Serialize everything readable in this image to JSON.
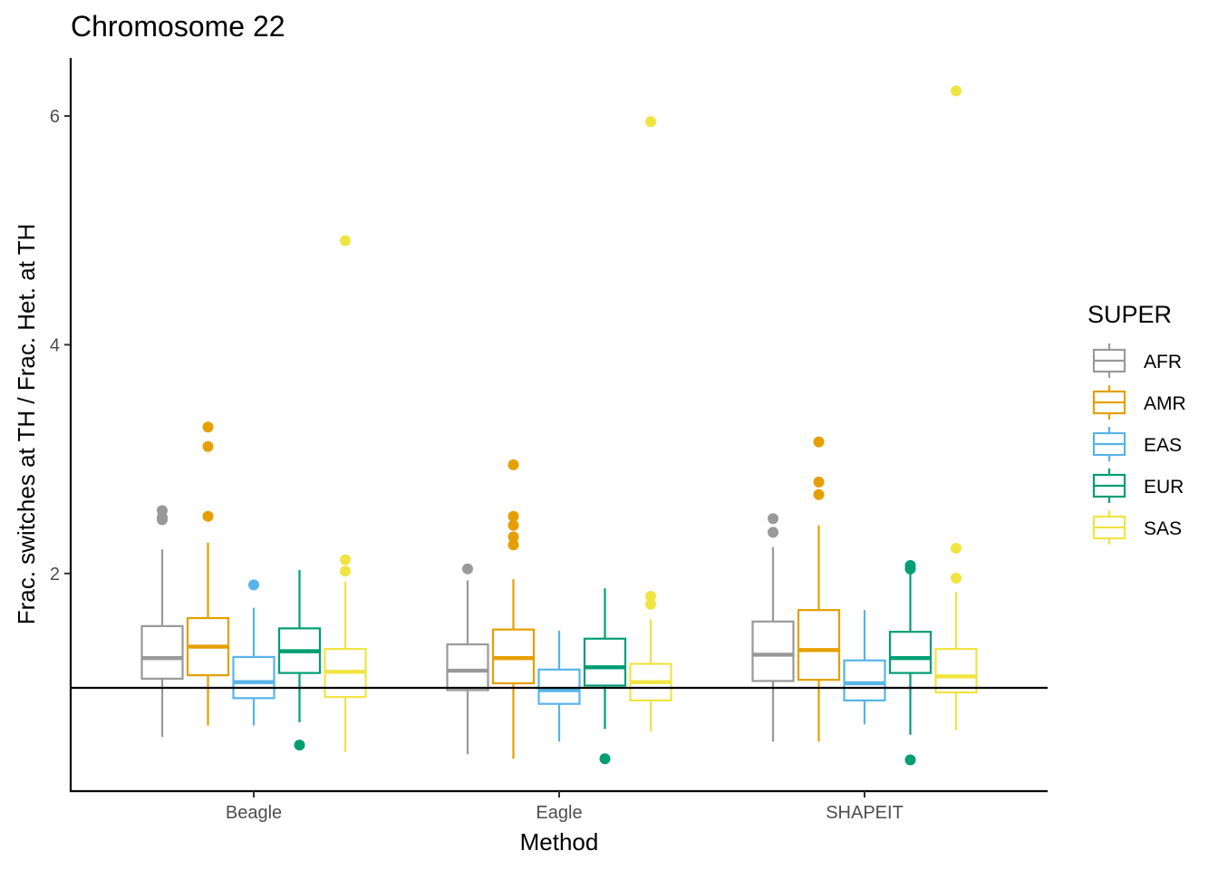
{
  "chart_data": {
    "type": "boxplot",
    "title": "Chromosome 22",
    "xlabel": "Method",
    "ylabel": "Frac. switches at TH / Frac. Het. at TH",
    "ylim": [
      0.0,
      6.5
    ],
    "yticks": [
      2,
      4,
      6
    ],
    "reference_line": 1.0,
    "categories": [
      "Beagle",
      "Eagle",
      "SHAPEIT"
    ],
    "legend": {
      "title": "SUPER",
      "position": "right"
    },
    "series": [
      {
        "name": "AFR",
        "color": "#999999",
        "boxes": [
          {
            "category": "Beagle",
            "whisker_low": 0.57,
            "q1": 1.08,
            "median": 1.26,
            "q3": 1.54,
            "whisker_high": 2.21,
            "outliers": [
              2.47,
              2.49,
              2.55
            ]
          },
          {
            "category": "Eagle",
            "whisker_low": 0.42,
            "q1": 0.98,
            "median": 1.15,
            "q3": 1.38,
            "whisker_high": 1.94,
            "outliers": [
              2.04
            ]
          },
          {
            "category": "SHAPEIT",
            "whisker_low": 0.53,
            "q1": 1.06,
            "median": 1.29,
            "q3": 1.58,
            "whisker_high": 2.23,
            "outliers": [
              2.36,
              2.48
            ]
          }
        ]
      },
      {
        "name": "AMR",
        "color": "#E69F00",
        "boxes": [
          {
            "category": "Beagle",
            "whisker_low": 0.67,
            "q1": 1.11,
            "median": 1.36,
            "q3": 1.61,
            "whisker_high": 2.27,
            "outliers": [
              2.5,
              3.11,
              3.28
            ]
          },
          {
            "category": "Eagle",
            "whisker_low": 0.38,
            "q1": 1.04,
            "median": 1.26,
            "q3": 1.51,
            "whisker_high": 1.95,
            "outliers": [
              2.25,
              2.32,
              2.42,
              2.5,
              2.95
            ]
          },
          {
            "category": "SHAPEIT",
            "whisker_low": 0.53,
            "q1": 1.07,
            "median": 1.33,
            "q3": 1.68,
            "whisker_high": 2.42,
            "outliers": [
              2.69,
              2.8,
              3.15
            ]
          }
        ]
      },
      {
        "name": "EAS",
        "color": "#56B4E9",
        "boxes": [
          {
            "category": "Beagle",
            "whisker_low": 0.67,
            "q1": 0.91,
            "median": 1.05,
            "q3": 1.27,
            "whisker_high": 1.7,
            "outliers": [
              1.9
            ]
          },
          {
            "category": "Eagle",
            "whisker_low": 0.53,
            "q1": 0.86,
            "median": 0.98,
            "q3": 1.16,
            "whisker_high": 1.5,
            "outliers": []
          },
          {
            "category": "SHAPEIT",
            "whisker_low": 0.68,
            "q1": 0.89,
            "median": 1.04,
            "q3": 1.24,
            "whisker_high": 1.68,
            "outliers": []
          }
        ]
      },
      {
        "name": "EUR",
        "color": "#009E73",
        "boxes": [
          {
            "category": "Beagle",
            "whisker_low": 0.7,
            "q1": 1.13,
            "median": 1.32,
            "q3": 1.52,
            "whisker_high": 2.03,
            "outliers": [
              0.5
            ]
          },
          {
            "category": "Eagle",
            "whisker_low": 0.64,
            "q1": 1.02,
            "median": 1.18,
            "q3": 1.43,
            "whisker_high": 1.87,
            "outliers": [
              0.38
            ]
          },
          {
            "category": "SHAPEIT",
            "whisker_low": 0.59,
            "q1": 1.13,
            "median": 1.26,
            "q3": 1.49,
            "whisker_high": 2.02,
            "outliers": [
              0.37,
              2.04,
              2.07
            ]
          }
        ]
      },
      {
        "name": "SAS",
        "color": "#F0E442",
        "boxes": [
          {
            "category": "Beagle",
            "whisker_low": 0.44,
            "q1": 0.92,
            "median": 1.14,
            "q3": 1.34,
            "whisker_high": 1.93,
            "outliers": [
              2.02,
              2.12,
              4.91
            ]
          },
          {
            "category": "Eagle",
            "whisker_low": 0.62,
            "q1": 0.89,
            "median": 1.05,
            "q3": 1.21,
            "whisker_high": 1.6,
            "outliers": [
              1.73,
              1.8,
              5.95
            ]
          },
          {
            "category": "SHAPEIT",
            "whisker_low": 0.63,
            "q1": 0.96,
            "median": 1.1,
            "q3": 1.34,
            "whisker_high": 1.84,
            "outliers": [
              1.96,
              2.22,
              6.22
            ]
          }
        ]
      }
    ]
  }
}
